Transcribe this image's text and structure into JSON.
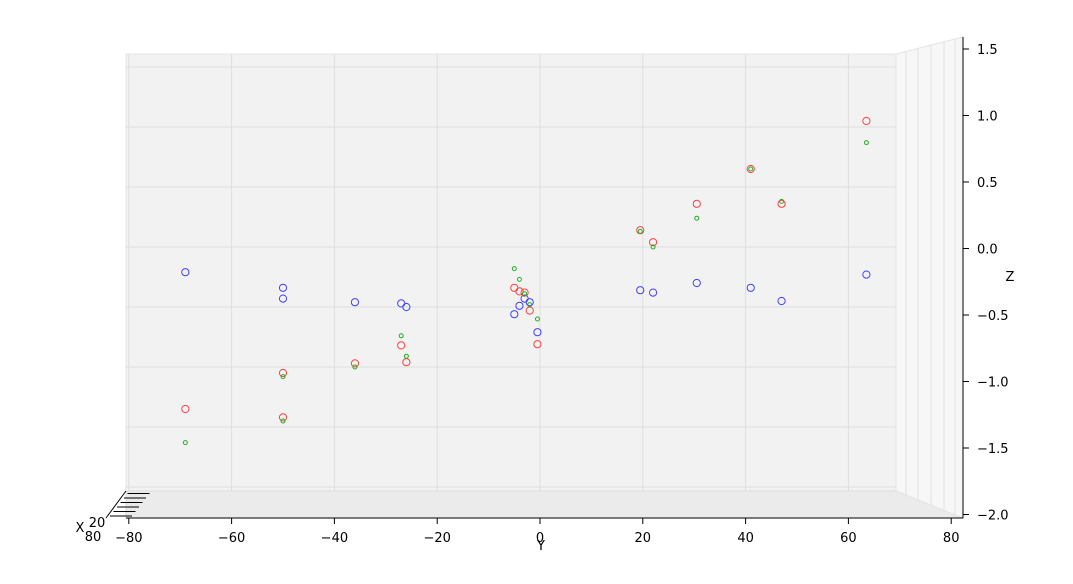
{
  "chart_data": {
    "type": "scatter",
    "projection": "3d",
    "view": "looking along x axis (y horizontal, z vertical)",
    "grid": true,
    "legend": "none",
    "xlabel": "X",
    "ylabel": "Y",
    "zlabel": "Z",
    "y_ticks": [
      "−80",
      "−60",
      "−40",
      "−20",
      "0",
      "20",
      "40",
      "60",
      "80"
    ],
    "y_tick_values": [
      -80,
      -60,
      -40,
      -20,
      0,
      20,
      40,
      60,
      80
    ],
    "z_ticks": [
      "1.5",
      "1.0",
      "0.5",
      "0.0",
      "−0.5",
      "−1.0",
      "−1.5",
      "−2.0"
    ],
    "z_tick_values": [
      1.5,
      1.0,
      0.5,
      0.0,
      -0.5,
      -1.0,
      -1.5,
      -2.0
    ],
    "x_ticks_partial": [
      "80",
      "20"
    ],
    "ylim": [
      -83,
      83
    ],
    "zlim": [
      -2.0,
      1.5
    ],
    "series": [
      {
        "color": "#4040ff",
        "marker": "open-circle",
        "points": [
          {
            "y": -69,
            "z": -0.21
          },
          {
            "y": -50,
            "z": -0.34
          },
          {
            "y": -50,
            "z": -0.43
          },
          {
            "y": -36,
            "z": -0.46
          },
          {
            "y": -27,
            "z": -0.47
          },
          {
            "y": -26,
            "z": -0.5
          },
          {
            "y": -5,
            "z": -0.56
          },
          {
            "y": -4,
            "z": -0.49
          },
          {
            "y": -3,
            "z": -0.43
          },
          {
            "y": -2,
            "z": -0.46
          },
          {
            "y": -0.5,
            "z": -0.71
          },
          {
            "y": 19.5,
            "z": -0.36
          },
          {
            "y": 22,
            "z": -0.38
          },
          {
            "y": 30.5,
            "z": -0.3
          },
          {
            "y": 41,
            "z": -0.34
          },
          {
            "y": 47,
            "z": -0.45
          },
          {
            "y": 63.5,
            "z": -0.23
          }
        ]
      },
      {
        "color": "#ff4040",
        "marker": "open-circle",
        "points": [
          {
            "y": -69,
            "z": -1.35
          },
          {
            "y": -50,
            "z": -1.05
          },
          {
            "y": -50,
            "z": -1.42
          },
          {
            "y": -36,
            "z": -0.97
          },
          {
            "y": -27,
            "z": -0.82
          },
          {
            "y": -26,
            "z": -0.96
          },
          {
            "y": -5,
            "z": -0.34
          },
          {
            "y": -4,
            "z": -0.37
          },
          {
            "y": -3,
            "z": -0.38
          },
          {
            "y": -2,
            "z": -0.53
          },
          {
            "y": -0.5,
            "z": -0.81
          },
          {
            "y": 19.5,
            "z": 0.14
          },
          {
            "y": 22,
            "z": 0.04
          },
          {
            "y": 30.5,
            "z": 0.36
          },
          {
            "y": 41,
            "z": 0.65
          },
          {
            "y": 47,
            "z": 0.36
          },
          {
            "y": 63.5,
            "z": 1.05
          }
        ]
      },
      {
        "color": "#20b020",
        "marker": "small-open-circle",
        "points": [
          {
            "y": -69,
            "z": -1.63
          },
          {
            "y": -50,
            "z": -1.08
          },
          {
            "y": -50,
            "z": -1.45
          },
          {
            "y": -36,
            "z": -1.0
          },
          {
            "y": -27,
            "z": -0.74
          },
          {
            "y": -26,
            "z": -0.91
          },
          {
            "y": -5,
            "z": -0.18
          },
          {
            "y": -4,
            "z": -0.27
          },
          {
            "y": -3,
            "z": -0.39
          },
          {
            "y": -2,
            "z": -0.48
          },
          {
            "y": -0.5,
            "z": -0.6
          },
          {
            "y": 19.5,
            "z": 0.13
          },
          {
            "y": 22,
            "z": 0.0
          },
          {
            "y": 30.5,
            "z": 0.24
          },
          {
            "y": 41,
            "z": 0.65
          },
          {
            "y": 47,
            "z": 0.38
          },
          {
            "y": 63.5,
            "z": 0.87
          }
        ]
      }
    ]
  }
}
